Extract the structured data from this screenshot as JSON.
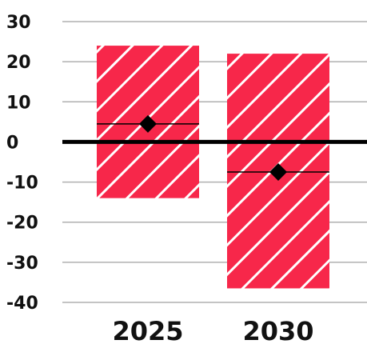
{
  "chart_data": {
    "type": "bar",
    "title": "",
    "xlabel": "",
    "ylabel": "",
    "categories": [
      "2025",
      "2030"
    ],
    "ranges": [
      {
        "category": "2025",
        "low": -14,
        "high": 24,
        "point": 4.5
      },
      {
        "category": "2030",
        "low": -36.5,
        "high": 22,
        "point": -7.5
      }
    ],
    "ylim": [
      -40,
      30
    ],
    "yticks": [
      30,
      20,
      10,
      0,
      -10,
      -20,
      -30,
      -40
    ],
    "ytick_labels": [
      "30",
      "20",
      "10",
      "0",
      "-10",
      "-20",
      "-30",
      "-40"
    ],
    "grid": true,
    "colors": {
      "bar_fill": "#f7274a",
      "hatch": "#ffffff",
      "marker": "#000000",
      "zero_line": "#000000",
      "grid": "#b0b0b0"
    }
  }
}
